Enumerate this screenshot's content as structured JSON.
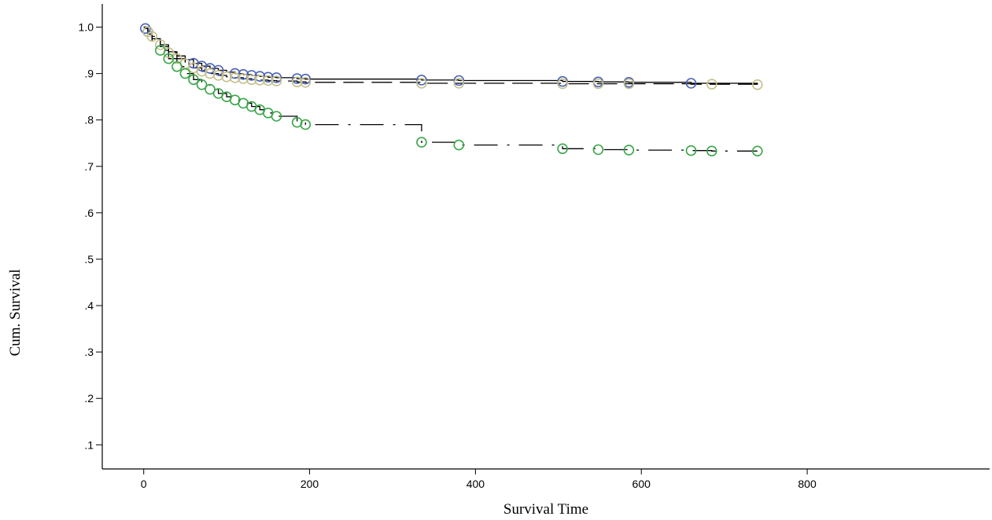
{
  "chart_data": {
    "type": "line",
    "title": "",
    "xlabel": "Survival Time",
    "ylabel": "Cum. Survival",
    "xlim": [
      -50,
      1020
    ],
    "ylim": [
      0.048,
      1.05
    ],
    "x_ticks": [
      0,
      200,
      400,
      600,
      800
    ],
    "x_tick_labels": [
      "0",
      "200",
      "400",
      "600",
      "800"
    ],
    "y_ticks": [
      0.1,
      0.2,
      0.3,
      0.4,
      0.5,
      0.6,
      0.7,
      0.8,
      0.9,
      1.0
    ],
    "y_tick_labels": [
      ".1",
      ".2",
      ".3",
      ".4",
      ".5",
      ".6",
      ".7",
      ".8",
      ".9",
      "1.0"
    ],
    "grid": false,
    "legend": "none",
    "marker": "open-circle",
    "series": [
      {
        "line_style": "solid",
        "line_color": "#000000",
        "marker_color": "#4a63b8",
        "x": [
          0,
          2,
          5,
          10,
          20,
          30,
          40,
          50,
          60,
          70,
          80,
          90,
          100,
          110,
          120,
          130,
          140,
          150,
          160,
          185,
          195,
          335,
          380,
          505,
          548,
          585,
          660,
          740
        ],
        "y": [
          1.0,
          0.997,
          0.99,
          0.975,
          0.958,
          0.947,
          0.938,
          0.93,
          0.922,
          0.916,
          0.911,
          0.907,
          0.903,
          0.9,
          0.898,
          0.896,
          0.894,
          0.892,
          0.891,
          0.889,
          0.888,
          0.886,
          0.885,
          0.883,
          0.882,
          0.881,
          0.879,
          0.877
        ],
        "censored_x": [
          2,
          5,
          60,
          70,
          80,
          90,
          110,
          120,
          130,
          140,
          150,
          160,
          185,
          195,
          335,
          380,
          505,
          548,
          585,
          660
        ]
      },
      {
        "line_style": "dashed",
        "line_color": "#000000",
        "marker_color": "#c6bf8c",
        "x": [
          0,
          5,
          10,
          20,
          30,
          40,
          50,
          60,
          70,
          80,
          90,
          100,
          110,
          120,
          130,
          140,
          150,
          160,
          185,
          195,
          335,
          380,
          505,
          548,
          585,
          660,
          685,
          740
        ],
        "y": [
          1.0,
          0.99,
          0.98,
          0.962,
          0.945,
          0.932,
          0.921,
          0.912,
          0.905,
          0.9,
          0.896,
          0.893,
          0.891,
          0.889,
          0.887,
          0.886,
          0.885,
          0.884,
          0.882,
          0.881,
          0.879,
          0.879,
          0.878,
          0.878,
          0.878,
          0.877,
          0.877,
          0.876
        ],
        "censored_x": [
          5,
          10,
          20,
          30,
          40,
          50,
          60,
          70,
          80,
          90,
          100,
          110,
          120,
          130,
          140,
          150,
          160,
          185,
          195,
          335,
          380,
          505,
          548,
          585,
          685,
          740
        ]
      },
      {
        "line_style": "dash-dot",
        "line_color": "#000000",
        "marker_color": "#3aa64a",
        "x": [
          0,
          5,
          10,
          20,
          30,
          40,
          50,
          60,
          70,
          80,
          90,
          100,
          110,
          120,
          130,
          140,
          150,
          160,
          185,
          195,
          335,
          380,
          505,
          548,
          585,
          660,
          685,
          740
        ],
        "y": [
          1.0,
          0.985,
          0.97,
          0.95,
          0.932,
          0.915,
          0.9,
          0.887,
          0.876,
          0.866,
          0.857,
          0.85,
          0.843,
          0.836,
          0.829,
          0.822,
          0.815,
          0.808,
          0.795,
          0.79,
          0.752,
          0.746,
          0.738,
          0.736,
          0.735,
          0.734,
          0.733,
          0.733
        ],
        "censored_x": [
          20,
          30,
          40,
          50,
          60,
          70,
          80,
          90,
          100,
          110,
          120,
          130,
          140,
          150,
          160,
          185,
          195,
          335,
          380,
          505,
          548,
          585,
          660,
          685,
          740
        ]
      }
    ]
  }
}
